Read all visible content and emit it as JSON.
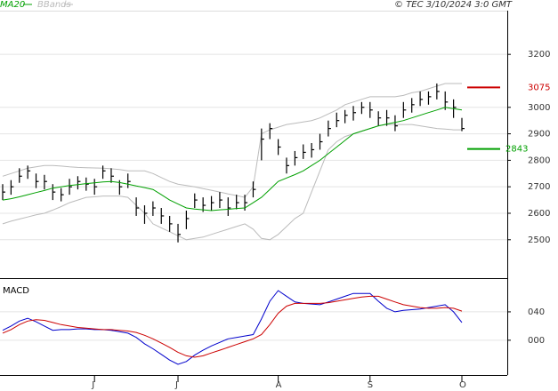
{
  "chart_data": [
    {
      "type": "ohlc",
      "title": "© TEC 3/10/2024 3:0 GMT",
      "ylim": [
        2355,
        3365
      ],
      "yticks": [
        2500,
        2600,
        2700,
        2800,
        2900,
        3000,
        3200
      ],
      "grid": true,
      "bar_color": "#000000",
      "high": [
        2710,
        2725,
        2770,
        2780,
        2750,
        2745,
        2710,
        2695,
        2730,
        2740,
        2735,
        2730,
        2780,
        2770,
        2725,
        2750,
        2660,
        2630,
        2645,
        2620,
        2590,
        2560,
        2610,
        2675,
        2660,
        2665,
        2680,
        2660,
        2670,
        2670,
        2720,
        2920,
        2940,
        2880,
        2810,
        2835,
        2860,
        2865,
        2900,
        2950,
        2980,
        2990,
        3005,
        3020,
        3020,
        2985,
        2990,
        2970,
        3020,
        3035,
        3060,
        3060,
        3090,
        3060,
        3030,
        2960
      ],
      "low": [
        2650,
        2670,
        2715,
        2730,
        2695,
        2690,
        2650,
        2645,
        2670,
        2690,
        2685,
        2670,
        2730,
        2715,
        2670,
        2695,
        2590,
        2560,
        2590,
        2560,
        2530,
        2490,
        2540,
        2620,
        2605,
        2610,
        2620,
        2590,
        2615,
        2610,
        2660,
        2800,
        2880,
        2820,
        2750,
        2780,
        2805,
        2810,
        2840,
        2890,
        2925,
        2940,
        2950,
        2975,
        2960,
        2930,
        2930,
        2910,
        2960,
        2980,
        3005,
        3010,
        3030,
        2990,
        2960,
        2910
      ],
      "close": [
        2680,
        2700,
        2740,
        2760,
        2720,
        2720,
        2680,
        2670,
        2700,
        2720,
        2710,
        2700,
        2760,
        2740,
        2700,
        2720,
        2620,
        2600,
        2620,
        2590,
        2560,
        2520,
        2580,
        2650,
        2630,
        2640,
        2650,
        2620,
        2640,
        2640,
        2690,
        2880,
        2920,
        2850,
        2780,
        2810,
        2830,
        2840,
        2870,
        2920,
        2950,
        2970,
        2980,
        3000,
        2990,
        2960,
        2960,
        2930,
        2990,
        3010,
        3030,
        3040,
        3060,
        3020,
        3000,
        2920
      ],
      "series": [
        {
          "name": "MA20",
          "color": "#00a000",
          "values": [
            2650,
            2655,
            2662,
            2670,
            2678,
            2686,
            2695,
            2700,
            2705,
            2708,
            2712,
            2715,
            2718,
            2720,
            2716,
            2710,
            2703,
            2697,
            2690,
            2670,
            2650,
            2635,
            2620,
            2616,
            2613,
            2610,
            2613,
            2615,
            2618,
            2620,
            2640,
            2660,
            2690,
            2720,
            2733,
            2746,
            2760,
            2780,
            2800,
            2825,
            2850,
            2875,
            2900,
            2910,
            2920,
            2930,
            2937,
            2943,
            2950,
            2960,
            2970,
            2980,
            2990,
            3000,
            2995,
            2990
          ]
        },
        {
          "name": "BBands",
          "color": "#bbbbbb",
          "upper": [
            2740,
            2750,
            2760,
            2770,
            2775,
            2780,
            2780,
            2778,
            2775,
            2773,
            2772,
            2771,
            2770,
            2768,
            2765,
            2760,
            2760,
            2760,
            2750,
            2735,
            2720,
            2710,
            2705,
            2700,
            2693,
            2687,
            2680,
            2673,
            2667,
            2660,
            2700,
            2900,
            2915,
            2925,
            2935,
            2940,
            2945,
            2950,
            2960,
            2975,
            2990,
            3010,
            3020,
            3030,
            3040,
            3040,
            3040,
            3040,
            3045,
            3055,
            3060,
            3070,
            3080,
            3090,
            3090,
            3090
          ],
          "lower": [
            2560,
            2570,
            2578,
            2586,
            2594,
            2600,
            2612,
            2625,
            2640,
            2650,
            2660,
            2662,
            2665,
            2665,
            2665,
            2660,
            2630,
            2600,
            2560,
            2545,
            2530,
            2515,
            2500,
            2505,
            2510,
            2520,
            2530,
            2540,
            2550,
            2560,
            2540,
            2505,
            2500,
            2520,
            2550,
            2580,
            2600,
            2680,
            2760,
            2840,
            2870,
            2890,
            2900,
            2910,
            2920,
            2930,
            2935,
            2935,
            2935,
            2935,
            2930,
            2925,
            2920,
            2918,
            2915,
            2915
          ]
        }
      ],
      "annotations": [
        {
          "value": 3075,
          "color": "#cc0000"
        },
        {
          "value": 2843,
          "color": "#00a000"
        }
      ]
    },
    {
      "type": "line",
      "title": "MACD",
      "categories": [
        null,
        null,
        null,
        null,
        null,
        null,
        null,
        null,
        null,
        null,
        null,
        "J",
        null,
        null,
        null,
        null,
        null,
        null,
        null,
        null,
        null,
        "J",
        null,
        null,
        null,
        null,
        null,
        null,
        null,
        null,
        null,
        null,
        null,
        "A",
        null,
        null,
        null,
        null,
        null,
        null,
        null,
        null,
        null,
        null,
        "S",
        null,
        null,
        null,
        null,
        null,
        null,
        null,
        null,
        null,
        null,
        "O"
      ],
      "ylim": [
        -49,
        85
      ],
      "yticks": [
        {
          "value": 0,
          "label": "000"
        },
        {
          "value": 40,
          "label": "040"
        }
      ],
      "grid": true,
      "series": [
        {
          "color": "#0000cc",
          "values": [
            14,
            20,
            27,
            31,
            26,
            20,
            14,
            15,
            15,
            16,
            16,
            15,
            15,
            14,
            12,
            10,
            4,
            -5,
            -12,
            -20,
            -28,
            -34,
            -30,
            -21,
            -14,
            -8,
            -3,
            2,
            4,
            6,
            8,
            30,
            55,
            70,
            62,
            54,
            52,
            51,
            50,
            54,
            58,
            62,
            66,
            66,
            66,
            55,
            45,
            40,
            42,
            43,
            44,
            46,
            48,
            50,
            40,
            25
          ]
        },
        {
          "color": "#cc0000",
          "values": [
            10,
            15,
            22,
            27,
            29,
            28,
            25,
            22,
            20,
            18,
            17,
            16,
            15,
            15,
            14,
            13,
            11,
            7,
            2,
            -4,
            -10,
            -17,
            -22,
            -24,
            -22,
            -18,
            -14,
            -10,
            -6,
            -2,
            2,
            8,
            22,
            38,
            48,
            52,
            52,
            52,
            52,
            53,
            55,
            57,
            59,
            61,
            62,
            62,
            58,
            54,
            50,
            48,
            46,
            45,
            45,
            46,
            45,
            41
          ]
        }
      ]
    }
  ]
}
